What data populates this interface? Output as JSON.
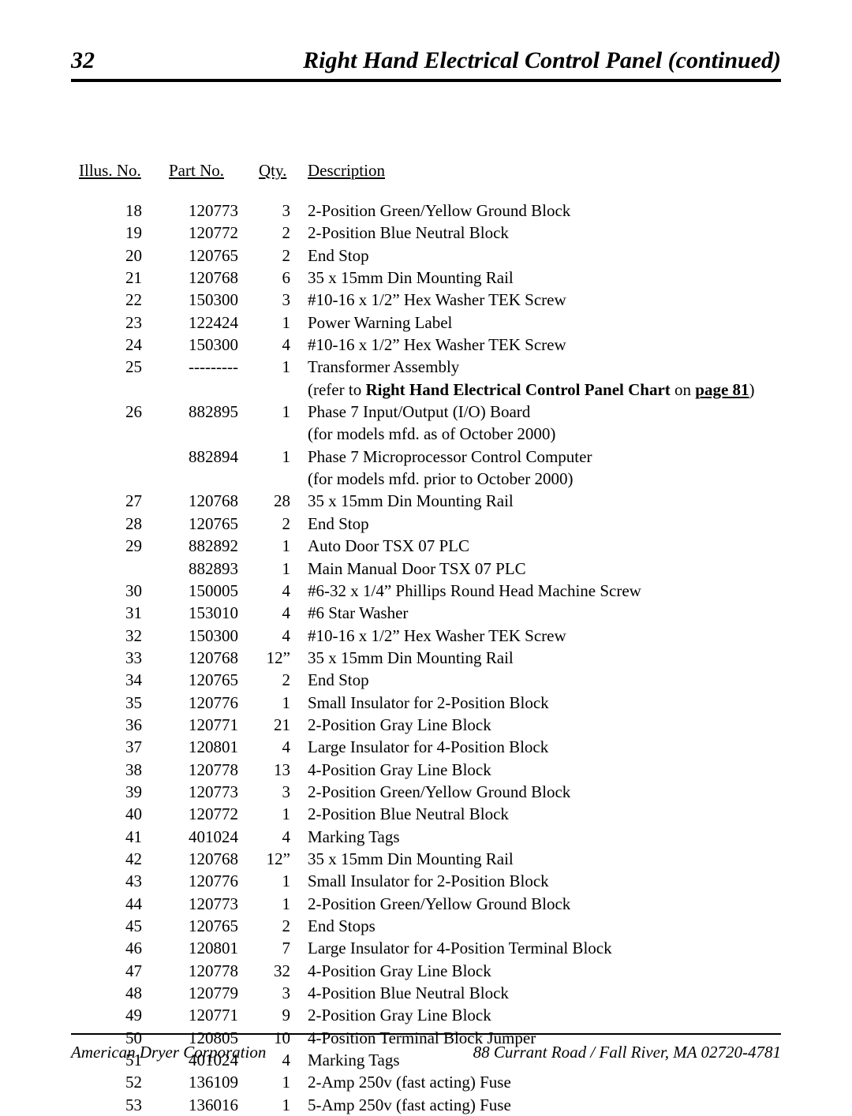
{
  "page_number": "32",
  "page_title": "Right Hand Electrical Control Panel (continued)",
  "headers": {
    "illus": "Illus. No.",
    "part": "Part No.",
    "qty": "Qty.",
    "desc": "Description"
  },
  "special_note": {
    "prefix": "(refer to ",
    "bold": "Right Hand Electrical Control Panel Chart",
    "mid": " on ",
    "link": "page 81",
    "suffix": ")"
  },
  "rows": [
    {
      "illus": "18",
      "part": "120773",
      "qty": "3",
      "desc": "2-Position Green/Yellow Ground Block"
    },
    {
      "illus": "19",
      "part": "120772",
      "qty": "2",
      "desc": "2-Position Blue Neutral Block"
    },
    {
      "illus": "20",
      "part": "120765",
      "qty": "2",
      "desc": "End Stop"
    },
    {
      "illus": "21",
      "part": "120768",
      "qty": "6",
      "desc": "35 x 15mm Din Mounting Rail"
    },
    {
      "illus": "22",
      "part": "150300",
      "qty": "3",
      "desc": "#10-16 x 1/2” Hex Washer TEK Screw"
    },
    {
      "illus": "23",
      "part": "122424",
      "qty": "1",
      "desc": "Power Warning Label"
    },
    {
      "illus": "24",
      "part": "150300",
      "qty": "4",
      "desc": "#10-16 x 1/2” Hex Washer TEK Screw"
    },
    {
      "illus": "25",
      "part": "---------",
      "qty": "1",
      "desc": "Transformer Assembly"
    },
    {
      "illus": "",
      "part": "",
      "qty": "",
      "desc": "__SPECIAL_NOTE__"
    },
    {
      "illus": "26",
      "part": "882895",
      "qty": "1",
      "desc": "Phase 7 Input/Output (I/O) Board"
    },
    {
      "illus": "",
      "part": "",
      "qty": "",
      "desc": "(for models mfd. as of October 2000)"
    },
    {
      "illus": "",
      "part": "882894",
      "qty": "1",
      "desc": "Phase 7 Microprocessor Control Computer"
    },
    {
      "illus": "",
      "part": "",
      "qty": "",
      "desc": "(for models mfd. prior to October 2000)"
    },
    {
      "illus": "27",
      "part": "120768",
      "qty": "28",
      "desc": "35 x 15mm Din Mounting Rail"
    },
    {
      "illus": "28",
      "part": "120765",
      "qty": "2",
      "desc": "End Stop"
    },
    {
      "illus": "29",
      "part": "882892",
      "qty": "1",
      "desc": "Auto Door TSX 07 PLC"
    },
    {
      "illus": "",
      "part": "882893",
      "qty": "1",
      "desc": "Main Manual Door TSX 07 PLC"
    },
    {
      "illus": "30",
      "part": "150005",
      "qty": "4",
      "desc": "#6-32 x 1/4” Phillips Round Head Machine Screw"
    },
    {
      "illus": "31",
      "part": "153010",
      "qty": "4",
      "desc": "#6 Star Washer"
    },
    {
      "illus": "32",
      "part": "150300",
      "qty": "4",
      "desc": "#10-16 x 1/2” Hex Washer TEK Screw"
    },
    {
      "illus": "33",
      "part": "120768",
      "qty": "12”",
      "desc": "35 x 15mm Din Mounting Rail"
    },
    {
      "illus": "34",
      "part": "120765",
      "qty": "2",
      "desc": "End Stop"
    },
    {
      "illus": "35",
      "part": "120776",
      "qty": "1",
      "desc": "Small Insulator for 2-Position Block"
    },
    {
      "illus": "36",
      "part": "120771",
      "qty": "21",
      "desc": "2-Position Gray Line Block"
    },
    {
      "illus": "37",
      "part": "120801",
      "qty": "4",
      "desc": "Large Insulator for 4-Position Block"
    },
    {
      "illus": "38",
      "part": "120778",
      "qty": "13",
      "desc": "4-Position Gray Line Block"
    },
    {
      "illus": "39",
      "part": "120773",
      "qty": "3",
      "desc": "2-Position Green/Yellow Ground Block"
    },
    {
      "illus": "40",
      "part": "120772",
      "qty": "1",
      "desc": "2-Position Blue Neutral Block"
    },
    {
      "illus": "41",
      "part": "401024",
      "qty": "4",
      "desc": "Marking Tags"
    },
    {
      "illus": "42",
      "part": "120768",
      "qty": "12”",
      "desc": "35 x 15mm Din Mounting Rail"
    },
    {
      "illus": "43",
      "part": "120776",
      "qty": "1",
      "desc": "Small Insulator for 2-Position Block"
    },
    {
      "illus": "44",
      "part": "120773",
      "qty": "1",
      "desc": "2-Position Green/Yellow Ground Block"
    },
    {
      "illus": "45",
      "part": "120765",
      "qty": "2",
      "desc": "End Stops"
    },
    {
      "illus": "46",
      "part": "120801",
      "qty": "7",
      "desc": "Large Insulator for 4-Position Terminal Block"
    },
    {
      "illus": "47",
      "part": "120778",
      "qty": "32",
      "desc": "4-Position Gray Line Block"
    },
    {
      "illus": "48",
      "part": "120779",
      "qty": "3",
      "desc": "4-Position Blue Neutral Block"
    },
    {
      "illus": "49",
      "part": "120771",
      "qty": "9",
      "desc": "2-Position Gray Line Block"
    },
    {
      "illus": "50",
      "part": "120805",
      "qty": "10",
      "desc": "4-Position Terminal Block Jumper"
    },
    {
      "illus": "51",
      "part": "401024",
      "qty": "4",
      "desc": "Marking Tags"
    },
    {
      "illus": "52",
      "part": "136109",
      "qty": "1",
      "desc": "2-Amp 250v (fast acting) Fuse"
    },
    {
      "illus": "53",
      "part": "136016",
      "qty": "1",
      "desc": "5-Amp 250v (fast acting) Fuse"
    }
  ],
  "footer": {
    "left": "American Dryer Corporation",
    "right": "88 Currant Road / Fall River, MA 02720-4781"
  }
}
